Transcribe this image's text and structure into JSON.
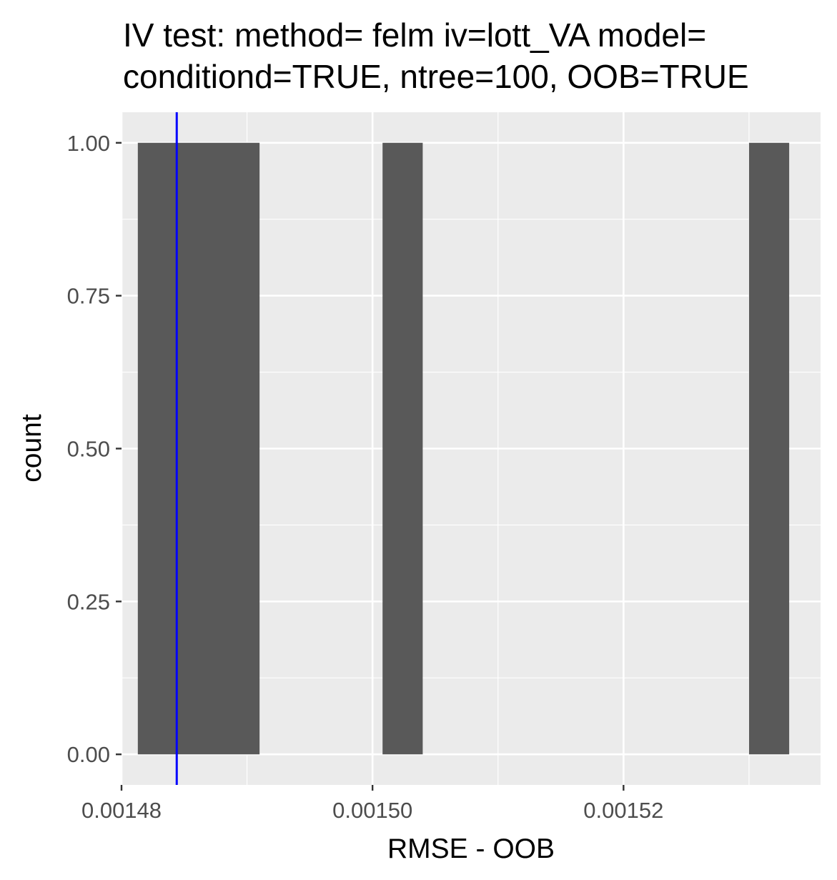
{
  "chart_data": {
    "type": "bar",
    "subtype": "histogram",
    "title_lines": [
      "IV test: method= felm iv=lott_VA model= ",
      "conditiond=TRUE, ntree=100, OOB=TRUE"
    ],
    "xlabel": "RMSE - OOB",
    "ylabel": "count",
    "xlim": [
      0.00148,
      0.0015357
    ],
    "ylim": [
      -0.05,
      1.05
    ],
    "x_ticks": [
      0.00148,
      0.0015,
      0.00152
    ],
    "x_tick_labels": [
      "0.00148",
      "0.00150",
      "0.00152"
    ],
    "y_ticks": [
      0,
      0.25,
      0.5,
      0.75,
      1
    ],
    "y_tick_labels": [
      "0.00",
      "0.25",
      "0.50",
      "0.75",
      "1.00"
    ],
    "bins": [
      {
        "xmin": 0.0014813,
        "xmax": 0.001491,
        "count": 1
      },
      {
        "xmin": 0.0015008,
        "xmax": 0.001504,
        "count": 1
      },
      {
        "xmin": 0.00153,
        "xmax": 0.0015332,
        "count": 1
      }
    ],
    "vline": {
      "x": 0.0014844
    },
    "colors": {
      "panel": "#EBEBEB",
      "grid": "#FFFFFF",
      "bar": "#595959",
      "vline": "#0000FF",
      "tick": "#333333"
    }
  }
}
